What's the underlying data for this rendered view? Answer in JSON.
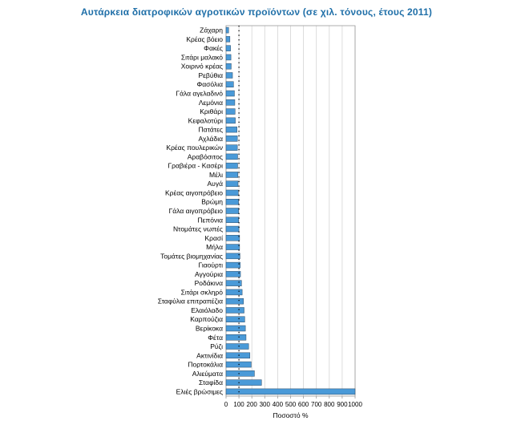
{
  "chart_data": {
    "type": "bar",
    "orientation": "horizontal",
    "title": "Αυτάρκεια διατροφικών αγροτικών προϊόντων (σε χιλ. τόνους, έτους 2011)",
    "xlabel": "Ποσοστό %",
    "ylabel": "",
    "xlim": [
      0,
      1000
    ],
    "xticks": [
      "0",
      "100",
      "200",
      "300",
      "400",
      "500",
      "600",
      "700",
      "800",
      "900",
      "1000"
    ],
    "grid": true,
    "reference_line": 100,
    "categories": [
      "Ζάχαρη",
      "Κρέας βόειο",
      "Φακές",
      "Σιτάρι μαλακό",
      "Χοιρινό κρέας",
      "Ρεβύθια",
      "Φασόλια",
      "Γάλα αγελαδινό",
      "Λεμόνια",
      "Κριθάρι",
      "Κεφαλοτύρι",
      "Πατάτες",
      "Αχλάδια",
      "Κρέας πουλερικών",
      "Αραβόσιτος",
      "Γραβιέρα - Κασέρι",
      "Μέλι",
      "Αυγά",
      "Κρέας αιγοπρόβειο",
      "Βρώμη",
      "Γάλα αιγοπρόβειο",
      "Πεπόνια",
      "Ντομάτες νωπές",
      "Κρασί",
      "Μήλα",
      "Τομάτες βιομηχανίας",
      "Γιαούρτι",
      "Αγγούρια",
      "Ροδάκινα",
      "Σιτάρι σκληρό",
      "Σταφύλια επιτραπέζια",
      "Ελαιόλαδο",
      "Καρπούζια",
      "Βερίκοκα",
      "Φέτα",
      "Ρύζι",
      "Ακτινίδια",
      "Πορτοκάλια",
      "Αλιεύματα",
      "Σταφίδα",
      "Ελιές βρώσιμες"
    ],
    "values": [
      20,
      30,
      35,
      38,
      40,
      50,
      58,
      65,
      68,
      70,
      72,
      85,
      88,
      88,
      90,
      90,
      92,
      93,
      95,
      97,
      98,
      98,
      100,
      105,
      105,
      108,
      110,
      112,
      120,
      125,
      135,
      140,
      145,
      150,
      155,
      175,
      185,
      195,
      220,
      275,
      1000
    ],
    "bar_color": "#4a9ad8"
  }
}
